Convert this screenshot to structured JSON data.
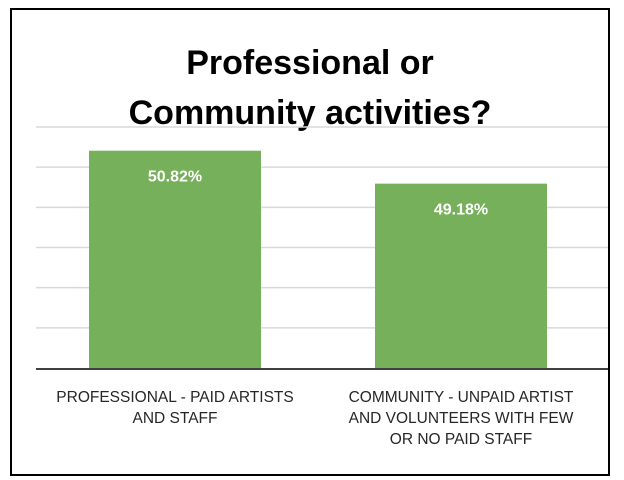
{
  "chart_data": {
    "type": "bar",
    "title_lines": [
      "Professional or",
      "Community activities?"
    ],
    "categories": [
      "PROFESSIONAL - PAID ARTISTS\nAND STAFF",
      "COMMUNITY - UNPAID ARTIST\nAND VOLUNTEERS WITH FEW\nOR NO PAID STAFF"
    ],
    "values": [
      50.82,
      49.18
    ],
    "data_labels": [
      "50.82%",
      "49.18%"
    ],
    "ylim": [
      40,
      52
    ],
    "grid": true,
    "legend": "none",
    "bar_color": "#76b05a",
    "label_color": "#ffffff",
    "gridline_color": "#d9d9d9",
    "axis_color": "#404040"
  }
}
